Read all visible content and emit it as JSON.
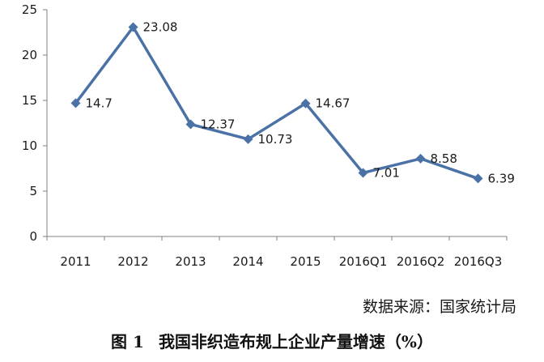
{
  "chart_data": {
    "type": "line",
    "categories": [
      "2011",
      "2012",
      "2013",
      "2014",
      "2015",
      "2016Q1",
      "2016Q2",
      "2016Q3"
    ],
    "series": [
      {
        "values": [
          14.7,
          23.08,
          12.37,
          10.73,
          14.67,
          7.01,
          8.58,
          6.39
        ]
      }
    ],
    "data_labels": [
      "14.7",
      "23.08",
      "12.37",
      "10.73",
      "14.67",
      "7.01",
      "8.58",
      "6.39"
    ],
    "ylim": [
      0,
      25
    ],
    "yticks": [
      0,
      5,
      10,
      15,
      20,
      25
    ],
    "line_color": "#4a72a6",
    "marker": "diamond",
    "grid": false,
    "legend": "none"
  },
  "source_note": "数据来源：国家统计局",
  "caption": {
    "figure_number": "图 1",
    "title": "我国非织造布规上企业产量增速（%）"
  }
}
